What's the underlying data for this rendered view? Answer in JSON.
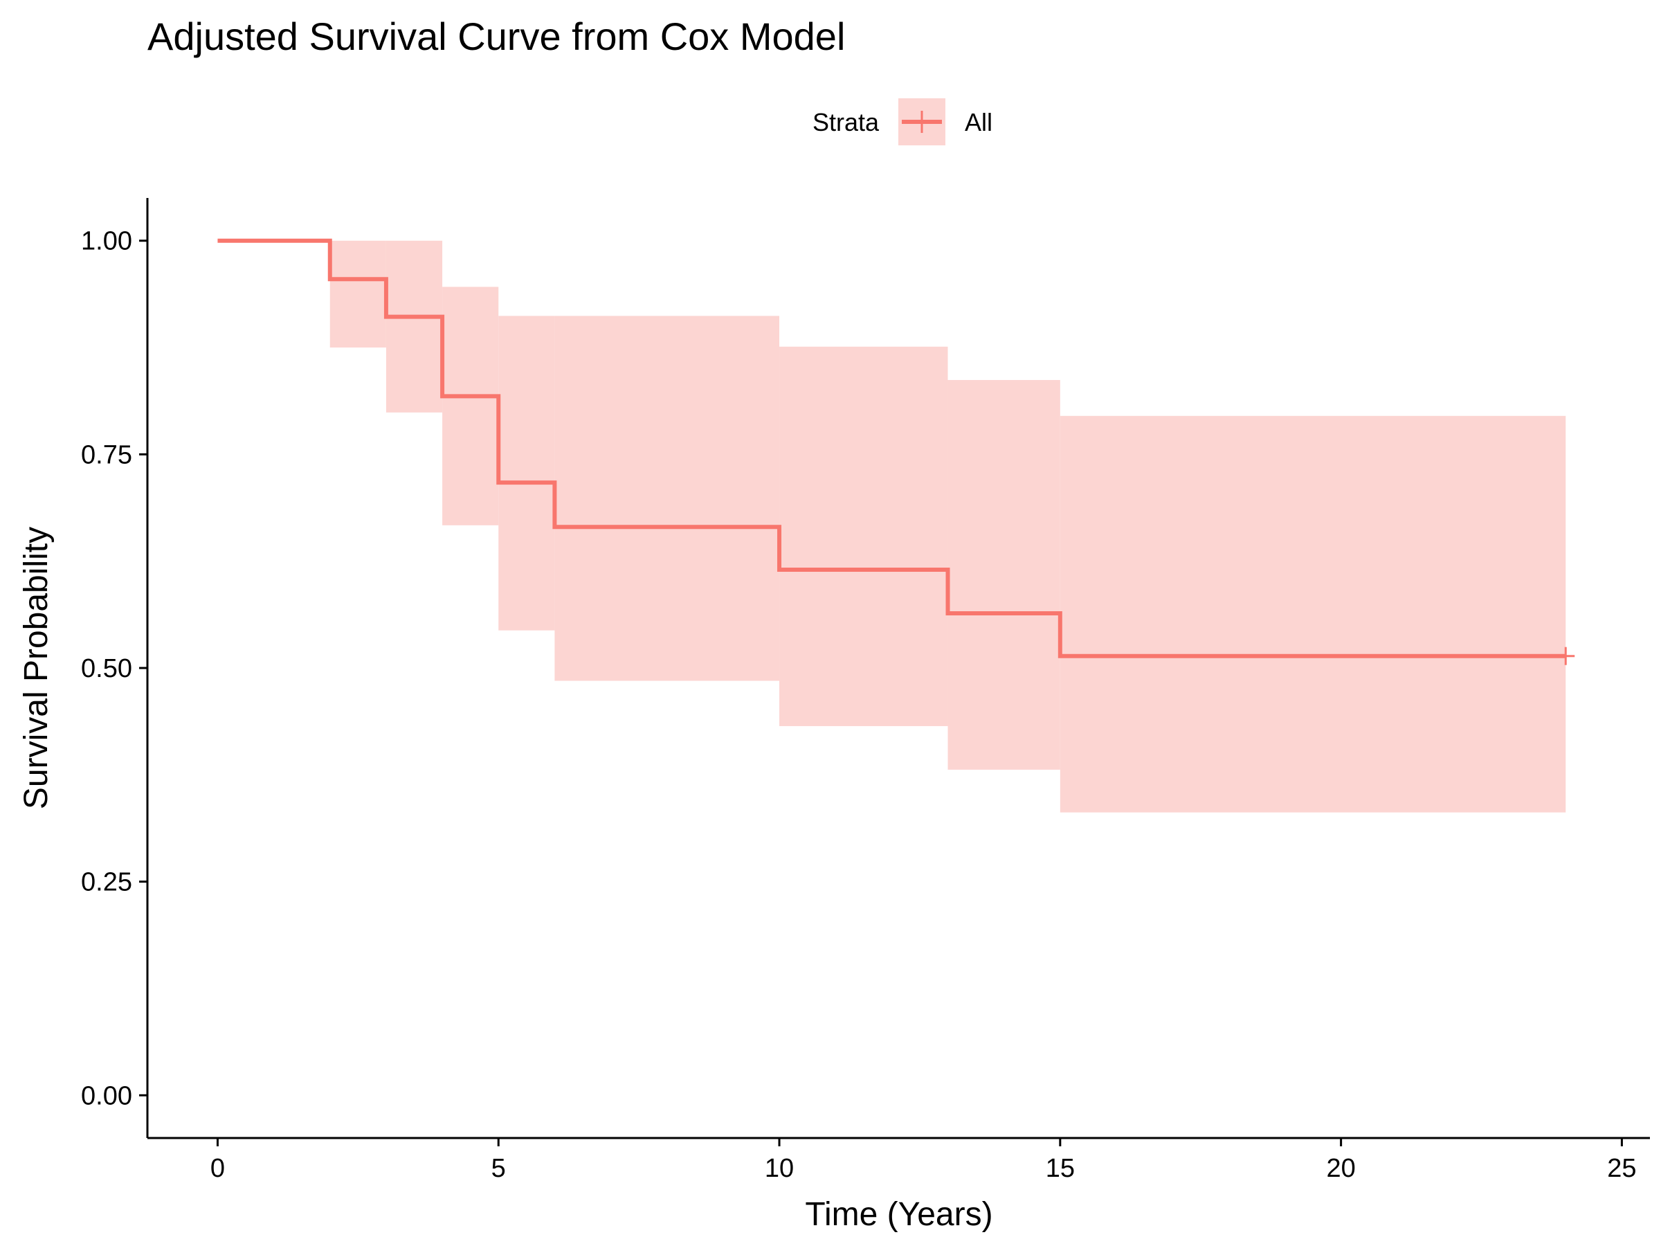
{
  "chart_data": {
    "type": "line",
    "title": "Adjusted Survival Curve from Cox Model",
    "xlabel": "Time (Years)",
    "ylabel": "Survival Probability",
    "xlim": [
      -1.25,
      25.5
    ],
    "ylim": [
      -0.05,
      1.05
    ],
    "x_ticks": [
      0,
      5,
      10,
      15,
      20,
      25
    ],
    "y_ticks": [
      0.0,
      0.25,
      0.5,
      0.75,
      1.0
    ],
    "x_tick_labels": [
      "0",
      "5",
      "10",
      "15",
      "20",
      "25"
    ],
    "y_tick_labels": [
      "0.00",
      "0.25",
      "0.50",
      "0.75",
      "1.00"
    ],
    "grid": false,
    "legend": {
      "title": "Strata",
      "position": "top",
      "entries": [
        "All"
      ]
    },
    "colors": {
      "line": "#F8766D",
      "band": "#FCD5D2"
    },
    "series": [
      {
        "name": "All",
        "step": "post",
        "x": [
          0,
          2,
          3,
          4,
          5,
          6,
          10,
          13,
          15,
          24
        ],
        "y": [
          1.0,
          0.955,
          0.911,
          0.818,
          0.717,
          0.665,
          0.615,
          0.564,
          0.514,
          0.514
        ],
        "lower": [
          1.0,
          0.875,
          0.799,
          0.667,
          0.544,
          0.485,
          0.432,
          0.381,
          0.331,
          0.331
        ],
        "upper": [
          1.0,
          1.0,
          1.0,
          0.946,
          0.912,
          0.912,
          0.876,
          0.837,
          0.795,
          0.795
        ],
        "censored_x": [
          24
        ]
      }
    ]
  }
}
